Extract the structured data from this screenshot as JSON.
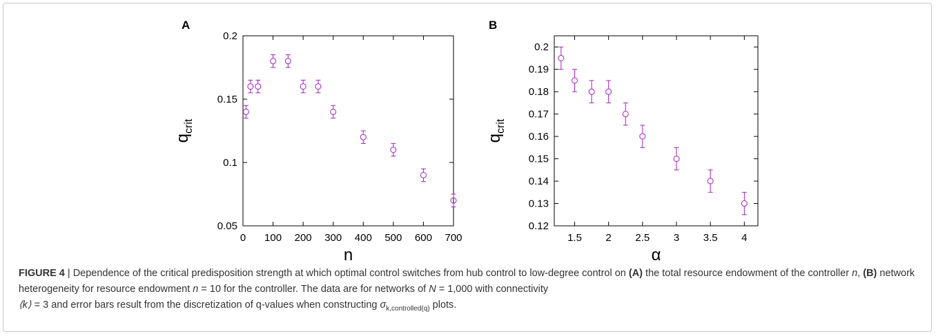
{
  "chart_data": [
    {
      "type": "scatter",
      "panel_label": "A",
      "xlabel": "n",
      "ylabel": "q",
      "ylabel_sub": "crit",
      "xlim": [
        0,
        700
      ],
      "ylim": [
        0.05,
        0.2
      ],
      "xticks": [
        0,
        100,
        200,
        300,
        400,
        500,
        600,
        700
      ],
      "yticks": [
        0.05,
        0.1,
        0.15,
        0.2
      ],
      "ytick_labels": [
        "0.05",
        "0.1",
        "0.15",
        "0.2"
      ],
      "color": "#a020c0",
      "marker": "open-circle",
      "points": [
        {
          "x": 10,
          "y": 0.14,
          "err": 0.005
        },
        {
          "x": 25,
          "y": 0.16,
          "err": 0.005
        },
        {
          "x": 50,
          "y": 0.16,
          "err": 0.005
        },
        {
          "x": 100,
          "y": 0.18,
          "err": 0.005
        },
        {
          "x": 150,
          "y": 0.18,
          "err": 0.005
        },
        {
          "x": 200,
          "y": 0.16,
          "err": 0.005
        },
        {
          "x": 250,
          "y": 0.16,
          "err": 0.005
        },
        {
          "x": 300,
          "y": 0.14,
          "err": 0.005
        },
        {
          "x": 400,
          "y": 0.12,
          "err": 0.005
        },
        {
          "x": 500,
          "y": 0.11,
          "err": 0.005
        },
        {
          "x": 600,
          "y": 0.09,
          "err": 0.005
        },
        {
          "x": 700,
          "y": 0.07,
          "err": 0.005
        }
      ]
    },
    {
      "type": "scatter",
      "panel_label": "B",
      "xlabel": "α",
      "ylabel": "q",
      "ylabel_sub": "crit",
      "xlim": [
        1.2,
        4.2
      ],
      "ylim": [
        0.12,
        0.205
      ],
      "xticks": [
        1.5,
        2,
        2.5,
        3,
        3.5,
        4
      ],
      "xtick_labels": [
        "1.5",
        "2",
        "2.5",
        "3",
        "3.5",
        "4"
      ],
      "yticks": [
        0.12,
        0.13,
        0.14,
        0.15,
        0.16,
        0.17,
        0.18,
        0.19,
        0.2
      ],
      "ytick_labels": [
        "0.12",
        "0.13",
        "0.14",
        "0.15",
        "0.16",
        "0.17",
        "0.18",
        "0.19",
        "0.2"
      ],
      "color": "#a020c0",
      "marker": "open-circle",
      "points": [
        {
          "x": 1.3,
          "y": 0.195,
          "err": 0.005
        },
        {
          "x": 1.5,
          "y": 0.185,
          "err": 0.005
        },
        {
          "x": 1.75,
          "y": 0.18,
          "err": 0.005
        },
        {
          "x": 2,
          "y": 0.18,
          "err": 0.005
        },
        {
          "x": 2.25,
          "y": 0.17,
          "err": 0.005
        },
        {
          "x": 2.5,
          "y": 0.16,
          "err": 0.005
        },
        {
          "x": 3,
          "y": 0.15,
          "err": 0.005
        },
        {
          "x": 3.5,
          "y": 0.14,
          "err": 0.005
        },
        {
          "x": 4,
          "y": 0.13,
          "err": 0.005
        }
      ]
    }
  ],
  "caption": {
    "figure_label": "FIGURE 4",
    "separator": " | ",
    "t1": "Dependence of the critical predisposition strength at which optimal control switches from hub control to low-degree control on ",
    "a_label": "(A)",
    "t2": " the total resource endowment of the controller ",
    "n_var": "n",
    "t3": ", ",
    "b_label": "(B)",
    "t4": " network heterogeneity for resource endowment ",
    "n_var2": "n",
    "t5": " = 10 for the controller. The data are for networks of ",
    "N_var": "N",
    "t6": " = 1,000 with connectivity",
    "k_expr": "⟨k⟩",
    "t7": " = 3 and error bars result from the discretization of q-values when constructing ",
    "sigma": "σ",
    "sigma_sub": "k,controlled(q)",
    "t8": " plots."
  }
}
